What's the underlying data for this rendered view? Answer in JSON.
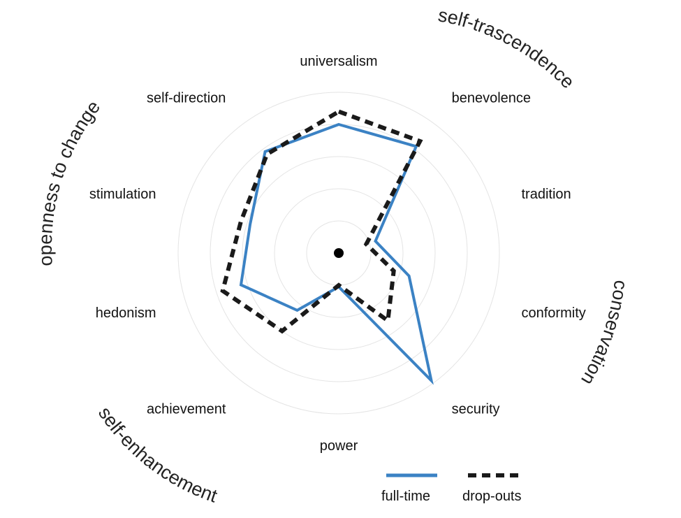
{
  "chart_data": {
    "type": "radar",
    "categories": [
      "universalism",
      "benevolence",
      "tradition",
      "conformity",
      "security",
      "power",
      "achievement",
      "hedonism",
      "stimulation",
      "self-direction"
    ],
    "rlim": [
      0,
      5
    ],
    "grid": true,
    "series": [
      {
        "name": "full-time",
        "values": [
          4.0,
          4.1,
          1.2,
          2.3,
          4.9,
          1.05,
          2.2,
          3.2,
          2.9,
          3.9
        ],
        "color": "#3b82c4",
        "style": "solid"
      },
      {
        "name": "drop-outs",
        "values": [
          4.4,
          4.3,
          0.9,
          1.8,
          2.6,
          1.0,
          3.0,
          3.8,
          3.2,
          3.8
        ],
        "color": "#1a1a1a",
        "style": "dashed"
      }
    ],
    "group_labels": [
      "self-trascendence",
      "conservation",
      "self-enhancement",
      "openness to change"
    ],
    "legend_position": "bottom-right"
  }
}
